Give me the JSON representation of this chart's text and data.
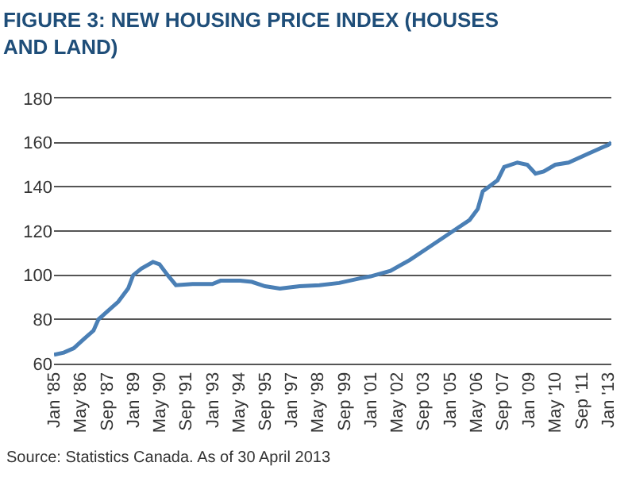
{
  "chart_data": {
    "type": "line",
    "title": "FIGURE 3: NEW HOUSING PRICE INDEX (HOUSES AND LAND)",
    "x": [
      "1985-01",
      "1985-07",
      "1986-01",
      "1986-07",
      "1987-01",
      "1987-04",
      "1987-10",
      "1988-04",
      "1988-10",
      "1989-01",
      "1989-06",
      "1990-01",
      "1990-05",
      "1990-10",
      "1991-03",
      "1992-01",
      "1993-01",
      "1993-06",
      "1994-06",
      "1995-01",
      "1995-09",
      "1996-06",
      "1997-06",
      "1998-06",
      "1999-06",
      "2000-06",
      "2001-01",
      "2002-01",
      "2003-01",
      "2004-01",
      "2005-01",
      "2006-01",
      "2006-06",
      "2006-09",
      "2007-06",
      "2007-10",
      "2008-06",
      "2008-12",
      "2009-05",
      "2009-10",
      "2010-05",
      "2011-01",
      "2012-01",
      "2013-01",
      "2013-03"
    ],
    "series": [
      {
        "color": "#4a7fb5",
        "values": [
          64,
          65,
          67,
          71,
          75,
          80,
          84,
          88,
          94,
          100,
          103,
          106,
          105,
          100,
          95.5,
          96,
          96,
          97.5,
          97.5,
          97,
          95,
          94,
          95,
          95.5,
          96.5,
          98.5,
          99.5,
          102,
          107,
          113,
          119,
          125,
          130,
          138,
          143,
          149,
          151,
          150,
          146,
          147,
          150,
          151,
          155,
          159,
          160
        ]
      }
    ],
    "xlim": [
      "1985-01",
      "2013-03"
    ],
    "xticks": [
      {
        "value": "1985-01",
        "label": "Jan '85"
      },
      {
        "value": "1986-05",
        "label": "May '86"
      },
      {
        "value": "1987-09",
        "label": "Sep '87"
      },
      {
        "value": "1989-01",
        "label": "Jan '89"
      },
      {
        "value": "1990-05",
        "label": "May '90"
      },
      {
        "value": "1991-09",
        "label": "Sep '91"
      },
      {
        "value": "1993-01",
        "label": "Jan '93"
      },
      {
        "value": "1994-05",
        "label": "May '94"
      },
      {
        "value": "1995-09",
        "label": "Sep '95"
      },
      {
        "value": "1997-01",
        "label": "Jan '97"
      },
      {
        "value": "1998-05",
        "label": "May '98"
      },
      {
        "value": "1999-09",
        "label": "Sep '99"
      },
      {
        "value": "2001-01",
        "label": "Jan '01"
      },
      {
        "value": "2002-05",
        "label": "May '02"
      },
      {
        "value": "2003-09",
        "label": "Sep '03"
      },
      {
        "value": "2005-01",
        "label": "Jan '05"
      },
      {
        "value": "2006-05",
        "label": "May '06"
      },
      {
        "value": "2007-09",
        "label": "Sep '07"
      },
      {
        "value": "2009-01",
        "label": "Jan '09"
      },
      {
        "value": "2010-05",
        "label": "May '10"
      },
      {
        "value": "2011-09",
        "label": "Sep '11"
      },
      {
        "value": "2013-01",
        "label": "Jan '13"
      }
    ],
    "ylim": [
      60,
      180
    ],
    "yticks": [
      60,
      80,
      100,
      120,
      140,
      160,
      180
    ],
    "grid": "y",
    "legend": false,
    "marker": "none",
    "line_style": "solid",
    "annotations": [
      "Source: Statistics Canada. As of 30 April 2013"
    ]
  }
}
